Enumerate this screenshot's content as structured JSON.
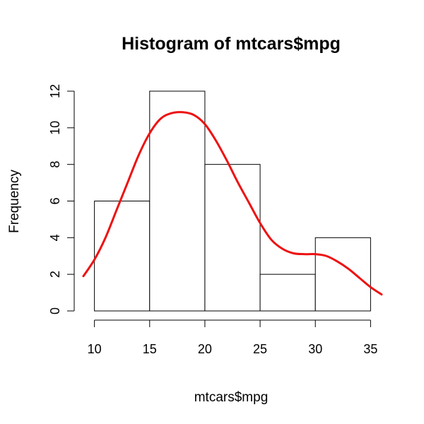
{
  "chart_data": {
    "type": "bar",
    "title": "Histogram of mtcars$mpg",
    "xlabel": "mtcars$mpg",
    "ylabel": "Frequency",
    "bins": [
      {
        "from": 10,
        "to": 15,
        "count": 6
      },
      {
        "from": 15,
        "to": 20,
        "count": 12
      },
      {
        "from": 20,
        "to": 25,
        "count": 8
      },
      {
        "from": 25,
        "to": 30,
        "count": 2
      },
      {
        "from": 30,
        "to": 35,
        "count": 4
      }
    ],
    "xticks": [
      10,
      15,
      20,
      25,
      30,
      35
    ],
    "yticks": [
      0,
      2,
      4,
      6,
      8,
      10,
      12
    ],
    "xlim": [
      9,
      36
    ],
    "ylim": [
      0,
      12
    ],
    "density_curve": {
      "color": "#ee1111",
      "x": [
        9,
        10,
        11,
        12,
        13,
        14,
        15,
        16,
        17,
        18,
        19,
        20,
        21,
        22,
        23,
        24,
        25,
        26,
        27,
        28,
        29,
        30,
        31,
        32,
        33,
        34,
        35,
        36
      ],
      "y": [
        1.9,
        2.8,
        4.0,
        5.5,
        7.0,
        8.5,
        9.7,
        10.5,
        10.8,
        10.85,
        10.7,
        10.2,
        9.3,
        8.2,
        7.0,
        5.9,
        4.8,
        3.9,
        3.4,
        3.15,
        3.1,
        3.1,
        3.0,
        2.7,
        2.3,
        1.8,
        1.3,
        0.9
      ]
    },
    "bar_fill": "#ffffff",
    "bar_stroke": "#000000",
    "grid": false,
    "legend": "none"
  }
}
